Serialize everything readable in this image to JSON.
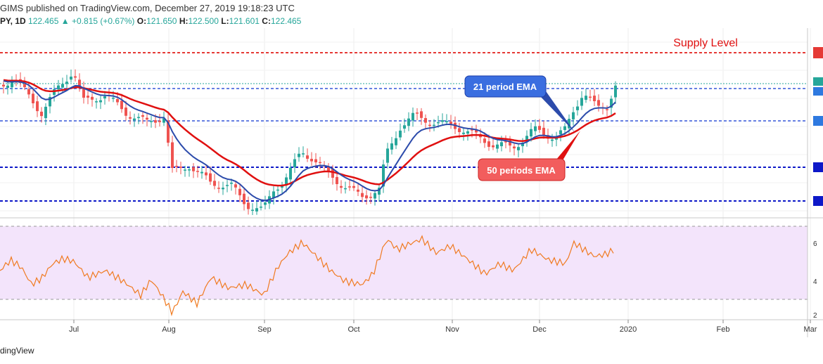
{
  "header": {
    "publish_line": "GIMS published on TradingView.com, December 27, 2019 19:18:23 UTC",
    "symbol": "PY, 1D",
    "last": "122.465",
    "change": "+0.815 (+0.67%)",
    "open_label": "O:",
    "open": "121.650",
    "high_label": "H:",
    "high": "122.500",
    "low_label": "L:",
    "low": "121.601",
    "close_label": "C:",
    "close": "122.465"
  },
  "footer": {
    "brand": "dingView"
  },
  "annotations": {
    "supply": "Supply Level",
    "ema21": "21 period EMA",
    "ema50": "50 periods EMA"
  },
  "colors": {
    "up": "#26a69a",
    "down": "#ef5350",
    "ema21": "#2c4bab",
    "ema50": "#e01010",
    "rsi": "#f07a20",
    "rsi_band": "#f3e4fb",
    "supply_line": "#e53935",
    "level_blue": "#3556d9",
    "level_navy": "#0d18c8"
  },
  "chart_data": {
    "type": "candlestick",
    "x_ticks": [
      "Jul",
      "Aug",
      "Sep",
      "Oct",
      "Nov",
      "Dec",
      "2020",
      "Feb",
      "Mar"
    ],
    "rsi_ylim": [
      0,
      100
    ],
    "rsi_bands": [
      30,
      70
    ],
    "rsi_tick_labels": [
      "6",
      "4",
      "2"
    ]
  }
}
